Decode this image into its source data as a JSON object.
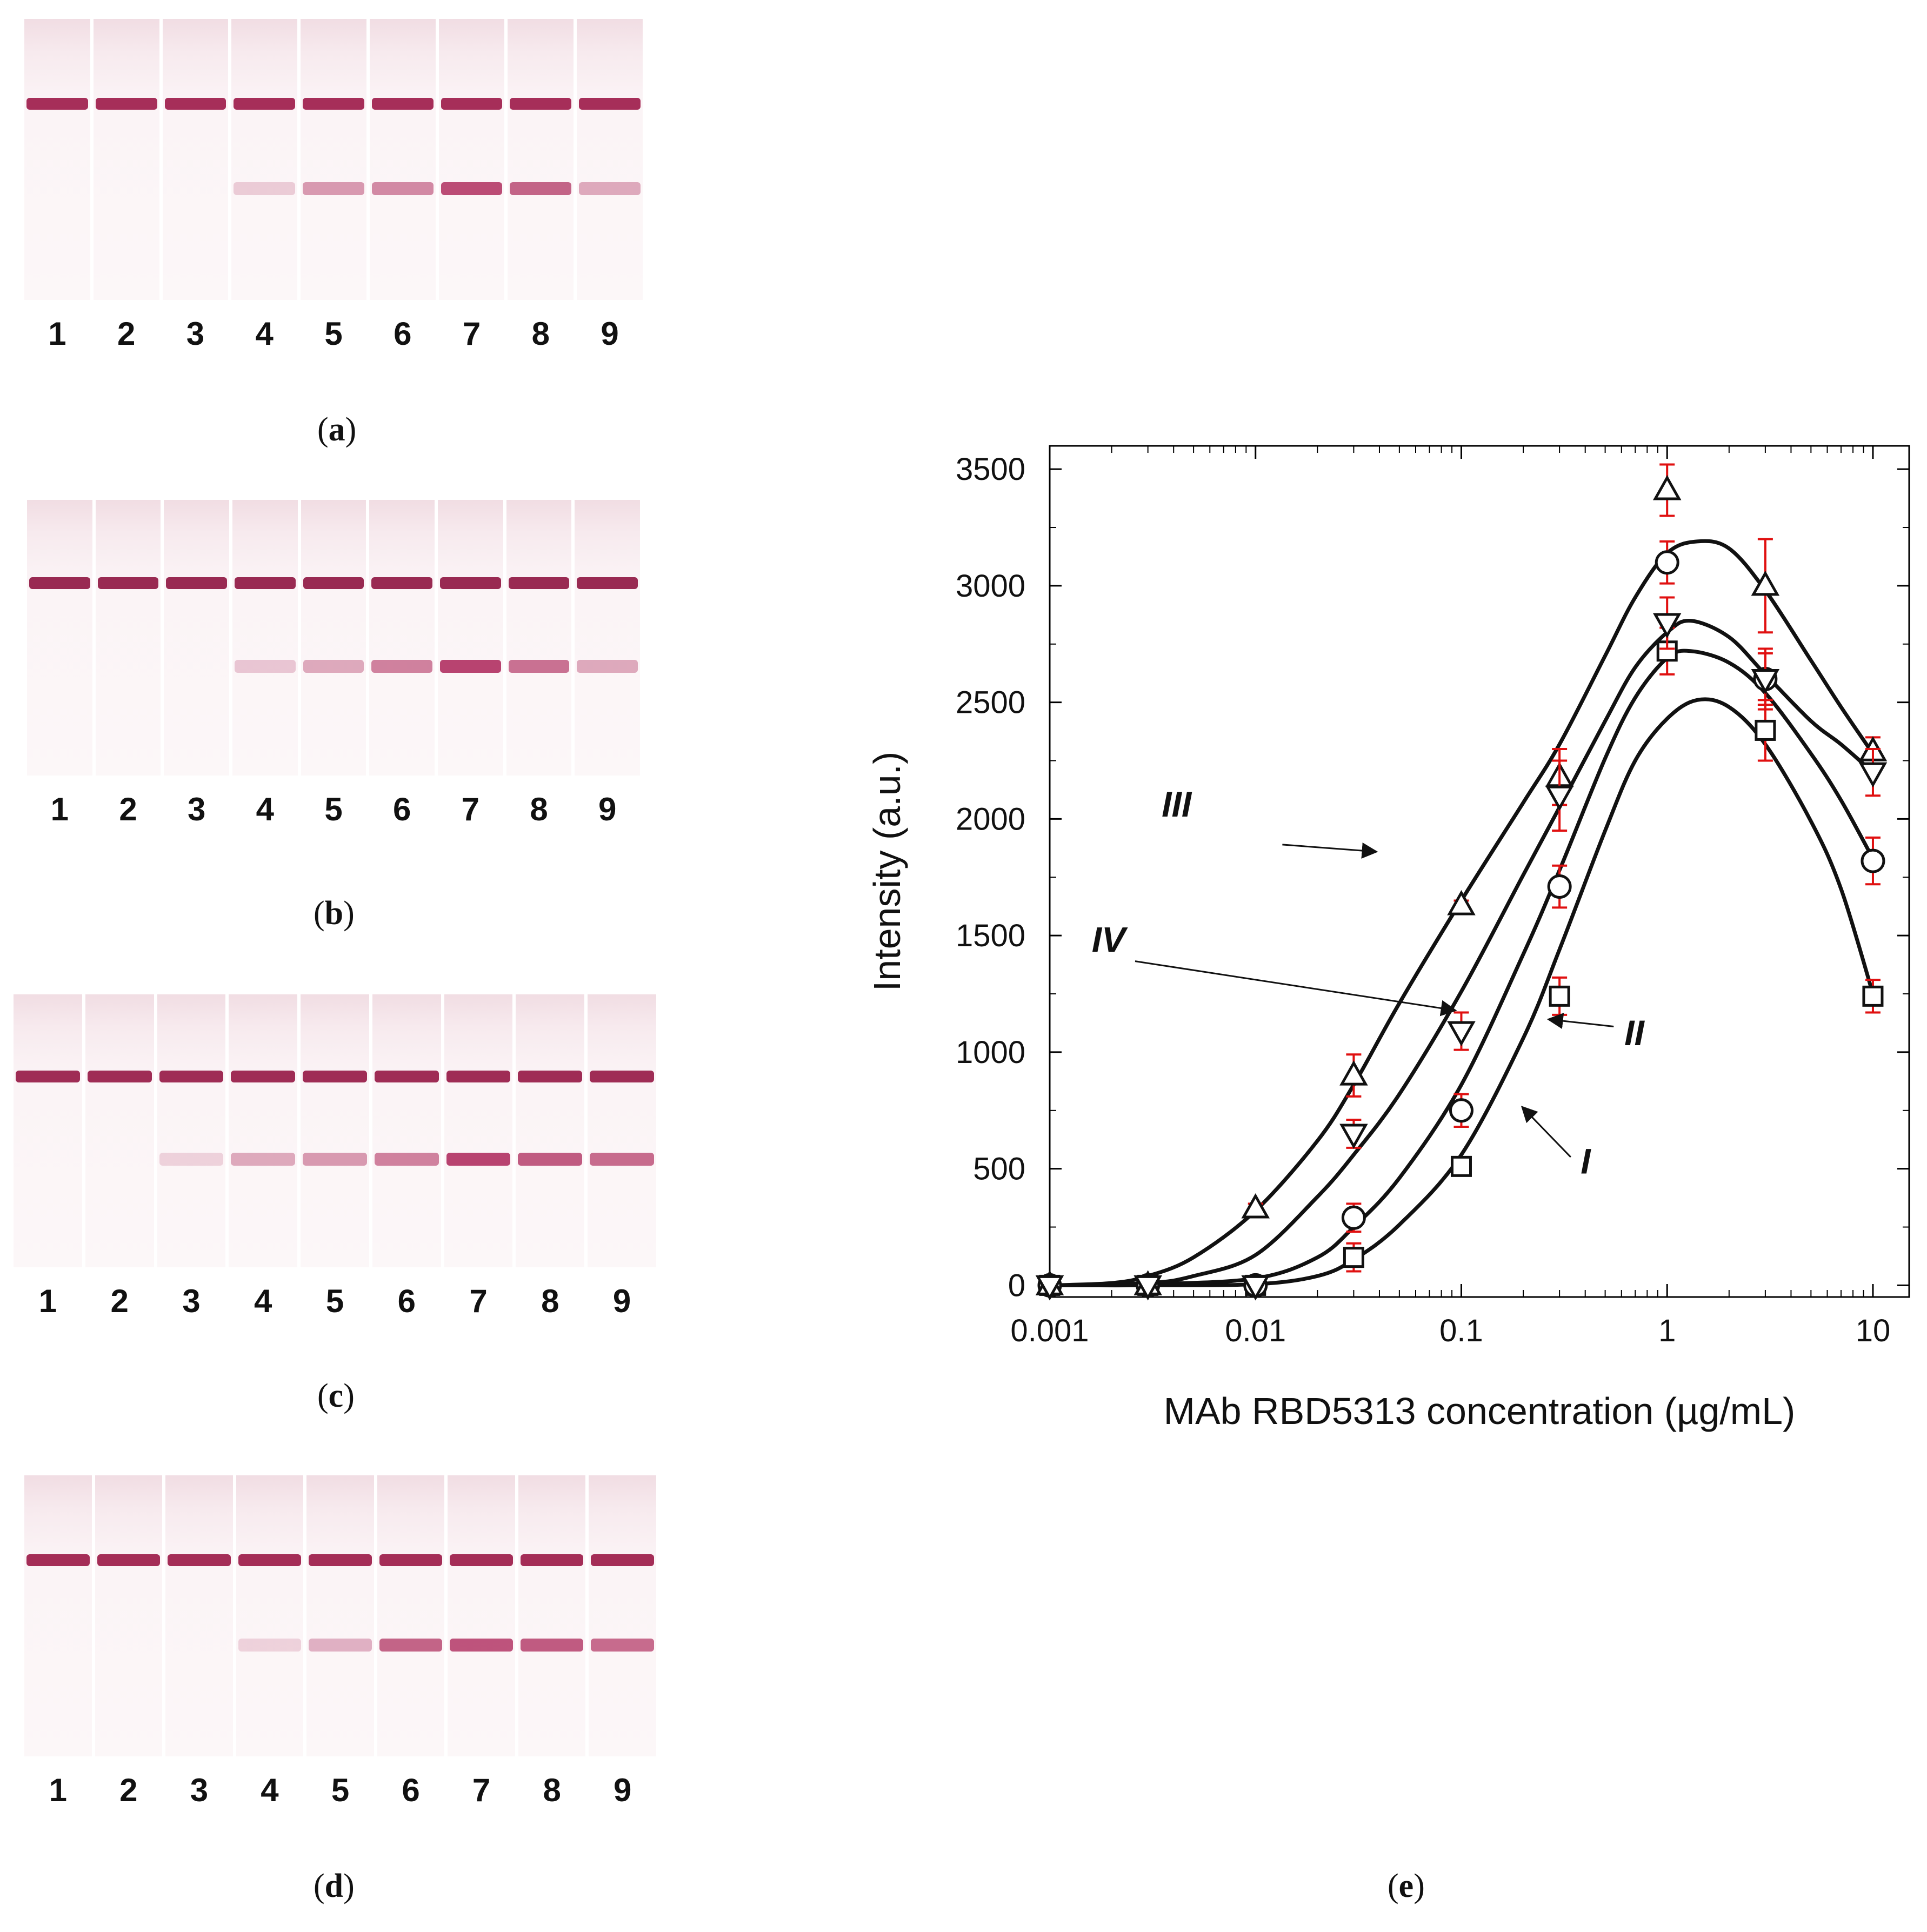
{
  "strip_panels": [
    {
      "id": "a",
      "caption": "a",
      "lanes": [
        "1",
        "2",
        "3",
        "4",
        "5",
        "6",
        "7",
        "8",
        "9"
      ],
      "control_color": "#9c1848",
      "test_color": "#b03060",
      "test_intensity": [
        0,
        0,
        0,
        0.12,
        0.45,
        0.55,
        0.95,
        0.8,
        0.35
      ]
    },
    {
      "id": "b",
      "caption": "b",
      "lanes": [
        "1",
        "2",
        "3",
        "4",
        "5",
        "6",
        "7",
        "8",
        "9"
      ],
      "control_color": "#8e1440",
      "test_color": "#b03060",
      "test_intensity": [
        0,
        0,
        0,
        0.15,
        0.35,
        0.6,
        1.0,
        0.7,
        0.35
      ]
    },
    {
      "id": "c",
      "caption": "c",
      "lanes": [
        "1",
        "2",
        "3",
        "4",
        "5",
        "6",
        "7",
        "8",
        "9"
      ],
      "control_color": "#951644",
      "test_color": "#b03060",
      "test_intensity": [
        0,
        0,
        0.08,
        0.35,
        0.45,
        0.6,
        1.0,
        0.85,
        0.75
      ]
    },
    {
      "id": "d",
      "caption": "d",
      "lanes": [
        "1",
        "2",
        "3",
        "4",
        "5",
        "6",
        "7",
        "8",
        "9"
      ],
      "control_color": "#9a1746",
      "test_color": "#b03060",
      "test_intensity": [
        0,
        0,
        0,
        0.08,
        0.3,
        0.8,
        0.9,
        0.85,
        0.75
      ]
    }
  ],
  "chart_caption": "e",
  "chart_data": {
    "type": "scatter",
    "xscale": "log",
    "xlabel": "MAb RBD5313 concentration (µg/mL)",
    "ylabel": "Intensity (a.u.)",
    "xlim": [
      0.001,
      15
    ],
    "ylim": [
      -50,
      3600
    ],
    "xticks": [
      0.001,
      0.01,
      0.1,
      1,
      10
    ],
    "xtick_labels": [
      "0.001",
      "0.01",
      "0.1",
      "1",
      "10"
    ],
    "yticks": [
      0,
      500,
      1000,
      1500,
      2000,
      2500,
      3000,
      3500
    ],
    "ytick_labels": [
      "0",
      "500",
      "1000",
      "1500",
      "2000",
      "2500",
      "3000",
      "3500"
    ],
    "error_color": "#e01010",
    "series": [
      {
        "name": "I",
        "marker": "square",
        "x": [
          0.001,
          0.003,
          0.01,
          0.03,
          0.1,
          0.3,
          1,
          3,
          10
        ],
        "y": [
          0,
          0,
          0,
          120,
          510,
          1240,
          2720,
          2380,
          1240
        ],
        "err": [
          0,
          0,
          0,
          60,
          20,
          80,
          100,
          130,
          70
        ],
        "curve_x": [
          0.001,
          0.003,
          0.01,
          0.02,
          0.03,
          0.05,
          0.1,
          0.2,
          0.3,
          0.5,
          0.7,
          1,
          1.4,
          2,
          3,
          5,
          7,
          10
        ],
        "curve_y": [
          0,
          0,
          5,
          40,
          110,
          260,
          560,
          1060,
          1440,
          1950,
          2250,
          2430,
          2510,
          2480,
          2320,
          1990,
          1700,
          1250
        ]
      },
      {
        "name": "II",
        "marker": "circle",
        "x": [
          0.001,
          0.003,
          0.01,
          0.03,
          0.1,
          0.3,
          1,
          3,
          10
        ],
        "y": [
          0,
          0,
          0,
          290,
          750,
          1710,
          3100,
          2600,
          1820
        ],
        "err": [
          0,
          0,
          0,
          60,
          70,
          90,
          90,
          110,
          100
        ],
        "curve_x": [
          0.001,
          0.003,
          0.01,
          0.02,
          0.03,
          0.05,
          0.1,
          0.2,
          0.3,
          0.5,
          0.7,
          1,
          1.3,
          2,
          3,
          5,
          7,
          10
        ],
        "curve_y": [
          0,
          5,
          30,
          120,
          250,
          460,
          860,
          1420,
          1780,
          2260,
          2520,
          2690,
          2720,
          2670,
          2540,
          2280,
          2080,
          1830
        ]
      },
      {
        "name": "III",
        "marker": "triangle-up",
        "x": [
          0.001,
          0.003,
          0.01,
          0.03,
          0.1,
          0.3,
          1,
          3,
          10
        ],
        "y": [
          0,
          0,
          330,
          900,
          1630,
          2180,
          3410,
          3000,
          2290
        ],
        "err": [
          0,
          0,
          20,
          90,
          20,
          120,
          110,
          200,
          60
        ],
        "curve_x": [
          0.001,
          0.002,
          0.003,
          0.005,
          0.01,
          0.02,
          0.03,
          0.05,
          0.1,
          0.2,
          0.3,
          0.5,
          0.7,
          1,
          1.4,
          2,
          3,
          5,
          7,
          10
        ],
        "curve_y": [
          0,
          10,
          40,
          120,
          320,
          620,
          860,
          1210,
          1650,
          2070,
          2320,
          2700,
          2950,
          3140,
          3190,
          3160,
          2980,
          2680,
          2480,
          2280
        ]
      },
      {
        "name": "IV",
        "marker": "triangle-down",
        "x": [
          0.001,
          0.003,
          0.01,
          0.03,
          0.1,
          0.3,
          1,
          3,
          10
        ],
        "y": [
          0,
          0,
          0,
          650,
          1090,
          2100,
          2840,
          2600,
          2200
        ],
        "err": [
          0,
          0,
          0,
          60,
          80,
          150,
          110,
          130,
          100
        ],
        "curve_x": [
          0.001,
          0.003,
          0.005,
          0.01,
          0.02,
          0.03,
          0.05,
          0.1,
          0.2,
          0.3,
          0.5,
          0.7,
          1,
          1.3,
          2,
          3,
          5,
          7,
          10
        ],
        "curve_y": [
          0,
          10,
          40,
          130,
          380,
          560,
          820,
          1260,
          1760,
          2050,
          2420,
          2650,
          2800,
          2850,
          2780,
          2620,
          2420,
          2320,
          2200
        ]
      }
    ],
    "annotations": [
      {
        "label": "III",
        "series": "III"
      },
      {
        "label": "IV",
        "series": "IV"
      },
      {
        "label": "II",
        "series": "II"
      },
      {
        "label": "I",
        "series": "I"
      }
    ]
  }
}
